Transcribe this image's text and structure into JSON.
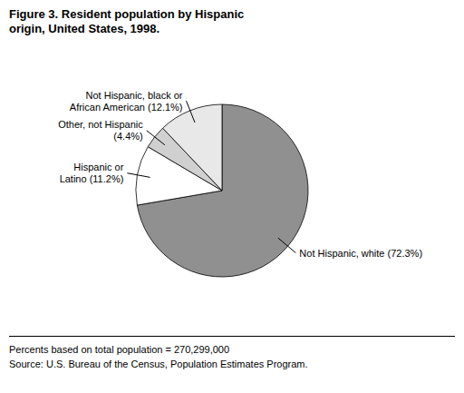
{
  "chart_data": {
    "type": "pie",
    "title": "Figure 3. Resident population by Hispanic\norigin, United States, 1998.",
    "categories": [
      "Not Hispanic, white (72.3%)",
      "Hispanic or\nLatino (11.2%)",
      "Other, not Hispanic\n(4.4%)",
      "Not Hispanic, black or\nAfrican American (12.1%)"
    ],
    "values": [
      72.3,
      11.2,
      4.4,
      12.1
    ],
    "colors": [
      "#909090",
      "#ffffff",
      "#d0d0d0",
      "#e8e8e8"
    ],
    "annotations": [
      "Percents based on total population = 270,299,000",
      "Source: U.S. Bureau of the Census, Population Estimates Program."
    ]
  }
}
